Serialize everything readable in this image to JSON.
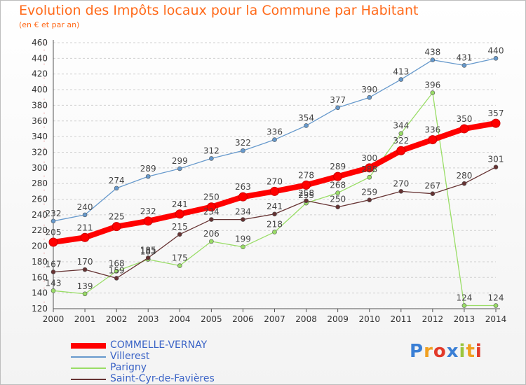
{
  "title": "Evolution des Impôts locaux pour la Commune par Habitant",
  "subtitle": "(en € et par an)",
  "logo": {
    "text": "Proxiti",
    "letter_colors": [
      "#3a7fd5",
      "#f0a020",
      "#e23a2a",
      "#3a7fd5",
      "#9bc53d",
      "#f0a020",
      "#e23a2a"
    ]
  },
  "chart_data": {
    "type": "line",
    "title": "Evolution des Impôts locaux pour la Commune par Habitant",
    "subtitle": "(en € et par an)",
    "x": [
      2000,
      2001,
      2002,
      2003,
      2004,
      2005,
      2006,
      2007,
      2008,
      2009,
      2010,
      2011,
      2012,
      2013,
      2014
    ],
    "ylim": [
      120,
      460
    ],
    "yticks": [
      120,
      140,
      160,
      180,
      200,
      220,
      240,
      260,
      280,
      300,
      320,
      340,
      360,
      380,
      400,
      420,
      440,
      460
    ],
    "grid": "horizontal dashed",
    "legend": "bottom-left",
    "series": [
      {
        "name": "Villerest",
        "color": "#6699cc",
        "values": [
          232,
          240,
          274,
          289,
          299,
          312,
          322,
          336,
          354,
          377,
          390,
          413,
          438,
          431,
          440
        ]
      },
      {
        "name": "Parigny",
        "color": "#99dd66",
        "values": [
          143,
          139,
          168,
          183,
          175,
          206,
          199,
          218,
          255,
          268,
          288,
          344,
          396,
          124,
          124
        ]
      },
      {
        "name": "Saint-Cyr-de-Favières",
        "color": "#663333",
        "values": [
          167,
          170,
          159,
          185,
          215,
          234,
          234,
          241,
          258,
          250,
          259,
          270,
          267,
          280,
          301
        ]
      },
      {
        "name": "COMMELLE-VERNAY",
        "color": "#ff0000",
        "values": [
          205,
          211,
          225,
          232,
          241,
          250,
          263,
          270,
          278,
          289,
          300,
          322,
          336,
          350,
          357
        ]
      }
    ]
  }
}
